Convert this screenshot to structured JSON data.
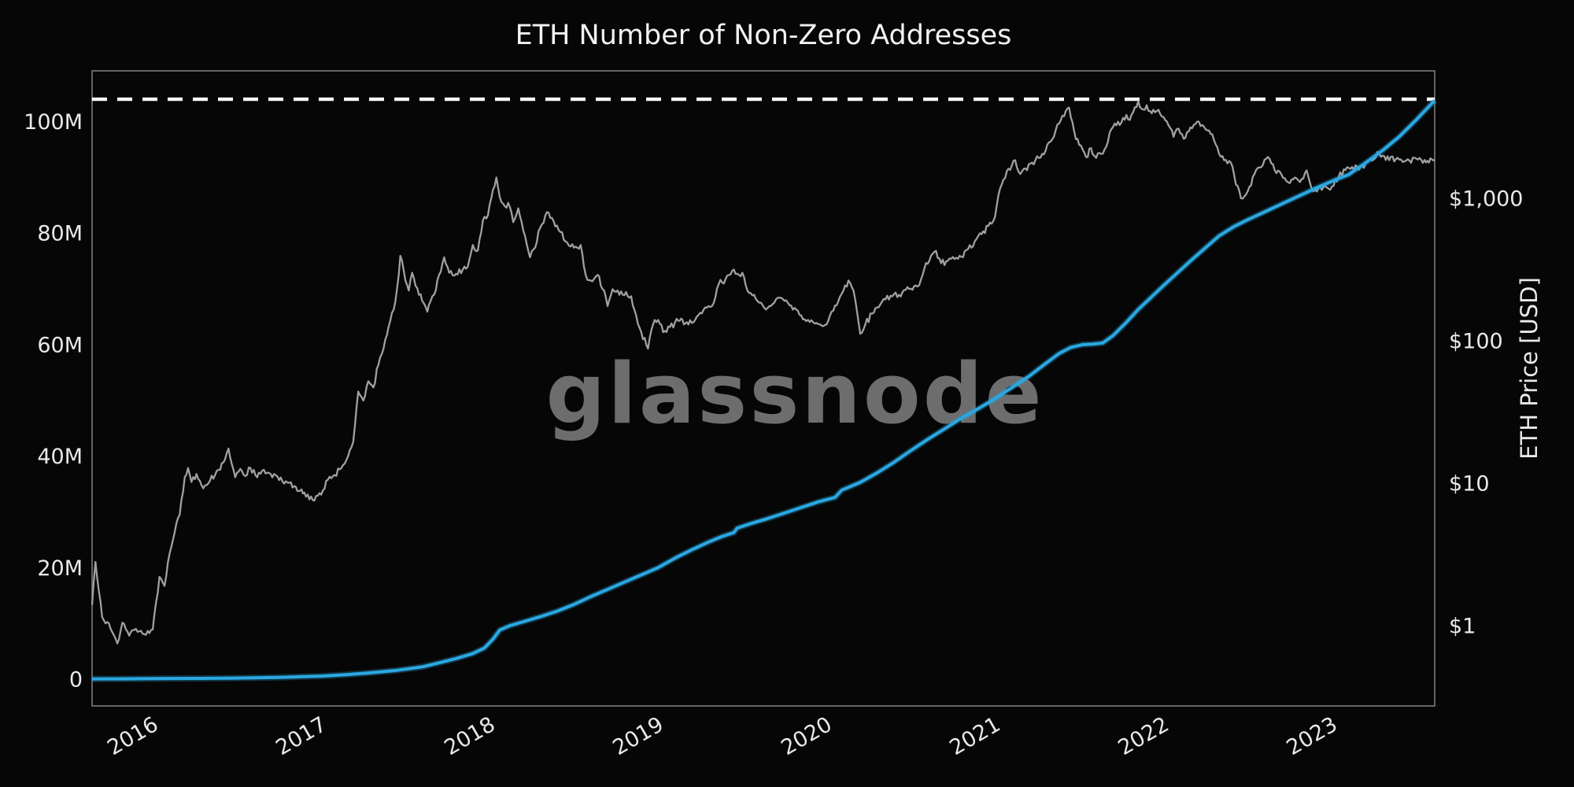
{
  "title": "ETH Number of Non-Zero Addresses",
  "watermark": "glassnode",
  "colors": {
    "background": "#060606",
    "addresses_line": "#2aa8e2",
    "price_line": "#a0a0a0",
    "dashed_line": "#ffffff",
    "border": "#7d7d7d",
    "text": "#e9e9e9",
    "title_text": "#f2f2f2",
    "watermark_text": "#6d6d6d"
  },
  "chart_data": {
    "type": "line",
    "title": "ETH Number of Non-Zero Addresses",
    "legend_position": "none",
    "grid": false,
    "x_axis": {
      "range": [
        2015.64,
        2023.61
      ],
      "tick_values": [
        2016,
        2017,
        2018,
        2019,
        2020,
        2021,
        2022,
        2023
      ],
      "tick_labels": [
        "2016",
        "2017",
        "2018",
        "2019",
        "2020",
        "2021",
        "2022",
        "2023"
      ],
      "tick_rotation_deg": 30
    },
    "y_left": {
      "label": "",
      "unit": "M addresses",
      "scale": "linear",
      "range": [
        -4.8,
        109.1
      ],
      "tick_values": [
        0,
        20,
        40,
        60,
        80,
        100
      ],
      "tick_labels": [
        "0",
        "20M",
        "40M",
        "60M",
        "80M",
        "100M"
      ]
    },
    "y_right": {
      "label": "ETH Price [USD]",
      "scale": "log",
      "range": [
        0.273,
        7850
      ],
      "tick_values": [
        1,
        10,
        100,
        1000
      ],
      "tick_labels": [
        "$1",
        "$10",
        "$100",
        "$1,000"
      ]
    },
    "annotation": {
      "type": "dashed-hline",
      "axis": "left",
      "value": 104,
      "meaning": "latest non-zero address count (~104M)"
    },
    "series": [
      {
        "name": "ETH Number of Non-Zero Addresses",
        "axis": "left",
        "color": "#2aa8e2",
        "unit": "million addresses",
        "x": [
          2015.64,
          2015.8,
          2016.0,
          2016.25,
          2016.5,
          2016.75,
          2017.0,
          2017.15,
          2017.3,
          2017.45,
          2017.6,
          2017.71,
          2017.8,
          2017.9,
          2017.97,
          2018.02,
          2018.06,
          2018.12,
          2018.2,
          2018.3,
          2018.4,
          2018.5,
          2018.6,
          2018.7,
          2018.8,
          2018.9,
          2019.0,
          2019.1,
          2019.2,
          2019.3,
          2019.38,
          2019.45,
          2019.47,
          2019.55,
          2019.65,
          2019.75,
          2019.85,
          2019.95,
          2020.05,
          2020.09,
          2020.2,
          2020.3,
          2020.4,
          2020.5,
          2020.6,
          2020.7,
          2020.8,
          2020.9,
          2021.0,
          2021.1,
          2021.2,
          2021.3,
          2021.38,
          2021.45,
          2021.52,
          2021.58,
          2021.64,
          2021.7,
          2021.78,
          2021.85,
          2021.92,
          2022.0,
          2022.08,
          2022.16,
          2022.25,
          2022.33,
          2022.42,
          2022.5,
          2022.6,
          2022.7,
          2022.8,
          2022.9,
          2023.0,
          2023.1,
          2023.2,
          2023.3,
          2023.4,
          2023.5,
          2023.61
        ],
        "y": [
          0.04,
          0.06,
          0.1,
          0.14,
          0.2,
          0.32,
          0.55,
          0.8,
          1.15,
          1.6,
          2.2,
          3.0,
          3.7,
          4.6,
          5.6,
          7.2,
          8.8,
          9.6,
          10.3,
          11.2,
          12.2,
          13.4,
          14.8,
          16.1,
          17.4,
          18.7,
          20.0,
          21.7,
          23.2,
          24.6,
          25.6,
          26.3,
          27.1,
          27.9,
          28.8,
          29.8,
          30.8,
          31.8,
          32.6,
          33.9,
          35.3,
          37.0,
          38.9,
          41.0,
          43.0,
          44.9,
          46.8,
          48.5,
          50.3,
          52.3,
          54.3,
          56.6,
          58.4,
          59.5,
          60.0,
          60.1,
          60.3,
          61.6,
          64.0,
          66.3,
          68.3,
          70.6,
          72.8,
          75.0,
          77.4,
          79.5,
          81.2,
          82.4,
          83.8,
          85.2,
          86.6,
          88.0,
          89.3,
          90.5,
          92.6,
          94.8,
          97.3,
          100.3,
          103.8
        ]
      },
      {
        "name": "ETH Price [USD]",
        "axis": "right",
        "color": "#a0a0a0",
        "unit": "USD",
        "x": [
          2015.64,
          2015.66,
          2015.7,
          2015.75,
          2015.79,
          2015.82,
          2015.86,
          2015.9,
          2015.95,
          2016.0,
          2016.04,
          2016.07,
          2016.1,
          2016.13,
          2016.16,
          2016.19,
          2016.21,
          2016.23,
          2016.26,
          2016.3,
          2016.34,
          2016.38,
          2016.42,
          2016.45,
          2016.47,
          2016.49,
          2016.52,
          2016.55,
          2016.58,
          2016.62,
          2016.66,
          2016.7,
          2016.75,
          2016.8,
          2016.85,
          2016.9,
          2016.95,
          2017.0,
          2017.04,
          2017.08,
          2017.12,
          2017.16,
          2017.19,
          2017.22,
          2017.25,
          2017.28,
          2017.31,
          2017.34,
          2017.37,
          2017.4,
          2017.43,
          2017.45,
          2017.47,
          2017.5,
          2017.52,
          2017.54,
          2017.57,
          2017.6,
          2017.63,
          2017.67,
          2017.7,
          2017.73,
          2017.76,
          2017.8,
          2017.84,
          2017.87,
          2017.9,
          2017.93,
          2017.96,
          2017.99,
          2018.02,
          2018.04,
          2018.06,
          2018.09,
          2018.11,
          2018.14,
          2018.17,
          2018.2,
          2018.24,
          2018.27,
          2018.3,
          2018.34,
          2018.38,
          2018.42,
          2018.46,
          2018.5,
          2018.54,
          2018.57,
          2018.6,
          2018.64,
          2018.68,
          2018.7,
          2018.73,
          2018.77,
          2018.81,
          2018.84,
          2018.87,
          2018.9,
          2018.94,
          2018.97,
          2019.0,
          2019.03,
          2019.07,
          2019.12,
          2019.17,
          2019.22,
          2019.27,
          2019.32,
          2019.36,
          2019.4,
          2019.44,
          2019.47,
          2019.5,
          2019.53,
          2019.57,
          2019.61,
          2019.65,
          2019.69,
          2019.73,
          2019.77,
          2019.81,
          2019.85,
          2019.89,
          2019.93,
          2019.97,
          2020.0,
          2020.03,
          2020.07,
          2020.1,
          2020.13,
          2020.16,
          2020.19,
          2020.2,
          2020.23,
          2020.27,
          2020.31,
          2020.35,
          2020.39,
          2020.43,
          2020.47,
          2020.5,
          2020.54,
          2020.58,
          2020.62,
          2020.65,
          2020.68,
          2020.72,
          2020.76,
          2020.8,
          2020.84,
          2020.88,
          2020.92,
          2020.96,
          2021.0,
          2021.02,
          2021.04,
          2021.07,
          2021.1,
          2021.12,
          2021.15,
          2021.18,
          2021.22,
          2021.26,
          2021.3,
          2021.33,
          2021.36,
          2021.39,
          2021.42,
          2021.44,
          2021.46,
          2021.48,
          2021.51,
          2021.54,
          2021.57,
          2021.6,
          2021.63,
          2021.66,
          2021.69,
          2021.72,
          2021.75,
          2021.78,
          2021.8,
          2021.83,
          2021.85,
          2021.87,
          2021.9,
          2021.93,
          2021.96,
          2022.0,
          2022.03,
          2022.06,
          2022.09,
          2022.12,
          2022.15,
          2022.18,
          2022.21,
          2022.25,
          2022.29,
          2022.33,
          2022.36,
          2022.4,
          2022.43,
          2022.46,
          2022.5,
          2022.54,
          2022.58,
          2022.62,
          2022.66,
          2022.7,
          2022.73,
          2022.77,
          2022.81,
          2022.85,
          2022.87,
          2022.89,
          2022.93,
          2022.97,
          2023.0,
          2023.04,
          2023.08,
          2023.12,
          2023.16,
          2023.2,
          2023.24,
          2023.28,
          2023.31,
          2023.34,
          2023.38,
          2023.42,
          2023.46,
          2023.5,
          2023.55,
          2023.61
        ],
        "y": [
          1.4,
          2.8,
          1.15,
          0.95,
          0.75,
          1.05,
          0.85,
          0.95,
          0.87,
          0.94,
          2.2,
          1.9,
          3.2,
          4.5,
          6.0,
          11.0,
          12.8,
          10.2,
          11.6,
          9.2,
          10.4,
          12.2,
          14.0,
          17.5,
          13.5,
          11.0,
          12.6,
          11.2,
          12.8,
          11.0,
          12.4,
          11.6,
          10.5,
          10.1,
          9.4,
          8.6,
          7.6,
          8.3,
          10.6,
          11.4,
          12.8,
          15.5,
          19.5,
          44,
          38,
          52,
          47,
          68,
          88,
          125,
          165,
          230,
          395,
          265,
          225,
          300,
          235,
          190,
          160,
          210,
          290,
          385,
          300,
          295,
          315,
          330,
          470,
          430,
          700,
          760,
          1150,
          1400,
          1020,
          880,
          930,
          680,
          850,
          590,
          385,
          450,
          620,
          800,
          690,
          580,
          490,
          450,
          470,
          290,
          265,
          290,
          225,
          175,
          230,
          210,
          220,
          205,
          150,
          115,
          88,
          130,
          140,
          115,
          125,
          138,
          135,
          140,
          165,
          175,
          250,
          270,
          310,
          295,
          300,
          225,
          210,
          185,
          170,
          185,
          200,
          185,
          170,
          150,
          140,
          132,
          128,
          130,
          160,
          190,
          225,
          265,
          225,
          135,
          112,
          130,
          155,
          172,
          195,
          205,
          210,
          228,
          232,
          240,
          320,
          395,
          428,
          350,
          365,
          375,
          388,
          440,
          500,
          560,
          640,
          740,
          1050,
          1250,
          1550,
          1700,
          1850,
          1480,
          1620,
          1780,
          1920,
          2150,
          2500,
          3000,
          3520,
          4100,
          4330,
          3400,
          2600,
          2350,
          1950,
          2250,
          1920,
          2050,
          2300,
          3050,
          3250,
          3400,
          3850,
          3550,
          4350,
          4800,
          4250,
          4500,
          3950,
          4100,
          3720,
          3250,
          2700,
          3080,
          2620,
          2950,
          3280,
          3450,
          3050,
          2800,
          2050,
          1850,
          1780,
          1250,
          1000,
          1120,
          1480,
          1650,
          1950,
          1580,
          1470,
          1320,
          1360,
          1300,
          1570,
          1280,
          1120,
          1210,
          1190,
          1210,
          1420,
          1580,
          1660,
          1590,
          1760,
          1840,
          2080,
          1980,
          1850,
          1890,
          1800,
          1840,
          1900,
          1860,
          1865
        ]
      }
    ]
  }
}
